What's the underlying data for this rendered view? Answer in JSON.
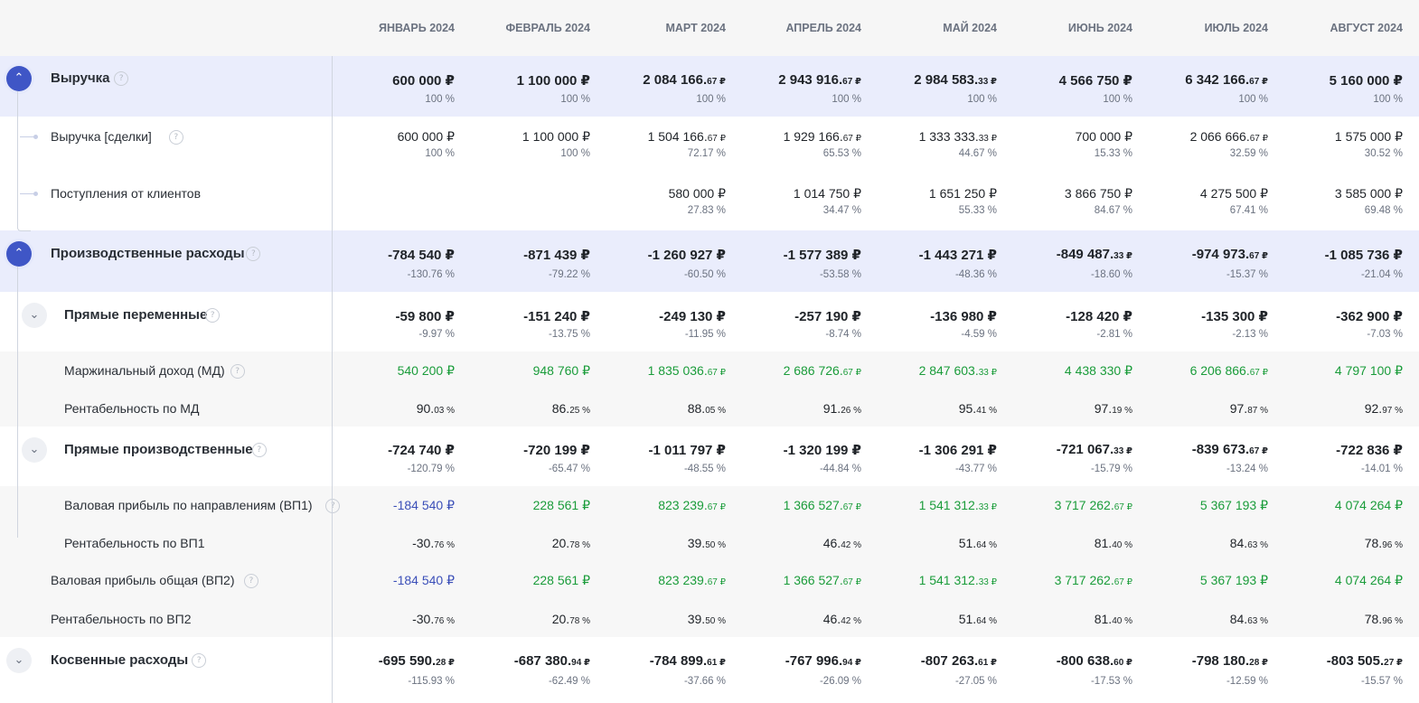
{
  "months": [
    "ЯНВАРЬ 2024",
    "ФЕВРАЛЬ 2024",
    "МАРТ 2024",
    "АПРЕЛЬ 2024",
    "МАЙ 2024",
    "ИЮНЬ 2024",
    "ИЮЛЬ 2024",
    "АВГУСТ 2024"
  ],
  "icons": {
    "help": "question-mark-icon",
    "collapse": "chevron-up-icon",
    "expand": "chevron-down-icon"
  },
  "colors": {
    "accent": "#3f56c6",
    "positive": "#1a9c3a",
    "negative_link": "#3b4fb8",
    "section_bg": "#eaedfc"
  },
  "rows": [
    {
      "id": "revenue",
      "label": "Выручка",
      "v1": [
        [
          "600 000 ₽",
          ""
        ],
        [
          "1 100 000 ₽",
          ""
        ],
        [
          "2 084 166.",
          "67 ₽"
        ],
        [
          "2 943 916.",
          "67 ₽"
        ],
        [
          "2 984 583.",
          "33 ₽"
        ],
        [
          "4 566 750 ₽",
          ""
        ],
        [
          "6 342 166.",
          "67 ₽"
        ],
        [
          "5 160 000 ₽",
          ""
        ]
      ],
      "v2": [
        "100 %",
        "100 %",
        "100 %",
        "100 %",
        "100 %",
        "100 %",
        "100 %",
        "100 %"
      ]
    },
    {
      "id": "revenue-deals",
      "label": "Выручка [сделки]",
      "v1": [
        [
          "600 000 ₽",
          ""
        ],
        [
          "1 100 000 ₽",
          ""
        ],
        [
          "1 504 166.",
          "67 ₽"
        ],
        [
          "1 929 166.",
          "67 ₽"
        ],
        [
          "1 333 333.",
          "33 ₽"
        ],
        [
          "700 000 ₽",
          ""
        ],
        [
          "2 066 666.",
          "67 ₽"
        ],
        [
          "1 575 000 ₽",
          ""
        ]
      ],
      "v2": [
        "100 %",
        "100 %",
        "72.17 %",
        "65.53 %",
        "44.67 %",
        "15.33 %",
        "32.59 %",
        "30.52 %"
      ]
    },
    {
      "id": "client-income",
      "label": "Поступления от клиентов",
      "v1": [
        [
          "",
          ""
        ],
        [
          "",
          ""
        ],
        [
          "580 000 ₽",
          ""
        ],
        [
          "1 014 750 ₽",
          ""
        ],
        [
          "1 651 250 ₽",
          ""
        ],
        [
          "3 866 750 ₽",
          ""
        ],
        [
          "4 275 500 ₽",
          ""
        ],
        [
          "3 585 000 ₽",
          ""
        ]
      ],
      "v2": [
        "",
        "",
        "27.83 %",
        "34.47 %",
        "55.33 %",
        "84.67 %",
        "67.41 %",
        "69.48 %"
      ]
    },
    {
      "id": "production-costs",
      "label": "Производственные расходы",
      "v1": [
        [
          "-784 540 ₽",
          ""
        ],
        [
          "-871 439 ₽",
          ""
        ],
        [
          "-1 260 927 ₽",
          ""
        ],
        [
          "-1 577 389 ₽",
          ""
        ],
        [
          "-1 443 271 ₽",
          ""
        ],
        [
          "-849 487.",
          "33 ₽"
        ],
        [
          "-974 973.",
          "67 ₽"
        ],
        [
          "-1 085 736 ₽",
          ""
        ]
      ],
      "v2": [
        "-130.76 %",
        "-79.22 %",
        "-60.50 %",
        "-53.58 %",
        "-48.36 %",
        "-18.60 %",
        "-15.37 %",
        "-21.04 %"
      ]
    },
    {
      "id": "direct-variable",
      "label": "Прямые переменные",
      "v1": [
        [
          "-59 800 ₽",
          ""
        ],
        [
          "-151 240 ₽",
          ""
        ],
        [
          "-249 130 ₽",
          ""
        ],
        [
          "-257 190 ₽",
          ""
        ],
        [
          "-136 980 ₽",
          ""
        ],
        [
          "-128 420 ₽",
          ""
        ],
        [
          "-135 300 ₽",
          ""
        ],
        [
          "-362 900 ₽",
          ""
        ]
      ],
      "v2": [
        "-9.97 %",
        "-13.75 %",
        "-11.95 %",
        "-8.74 %",
        "-4.59 %",
        "-2.81 %",
        "-2.13 %",
        "-7.03 %"
      ]
    },
    {
      "id": "marginal-income",
      "label": "Маржинальный доход (МД)",
      "v1": [
        [
          "540 200 ₽",
          ""
        ],
        [
          "948 760 ₽",
          ""
        ],
        [
          "1 835 036.",
          "67 ₽"
        ],
        [
          "2 686 726.",
          "67 ₽"
        ],
        [
          "2 847 603.",
          "33 ₽"
        ],
        [
          "4 438 330 ₽",
          ""
        ],
        [
          "6 206 866.",
          "67 ₽"
        ],
        [
          "4 797 100 ₽",
          ""
        ]
      ]
    },
    {
      "id": "md-profitability",
      "label": "Рентабельность по МД",
      "v1": [
        [
          "90.",
          "03 %"
        ],
        [
          "86.",
          "25 %"
        ],
        [
          "88.",
          "05 %"
        ],
        [
          "91.",
          "26 %"
        ],
        [
          "95.",
          "41 %"
        ],
        [
          "97.",
          "19 %"
        ],
        [
          "97.",
          "87 %"
        ],
        [
          "92.",
          "97 %"
        ]
      ]
    },
    {
      "id": "direct-production",
      "label": "Прямые производственные",
      "v1": [
        [
          "-724 740 ₽",
          ""
        ],
        [
          "-720 199 ₽",
          ""
        ],
        [
          "-1 011 797 ₽",
          ""
        ],
        [
          "-1 320 199 ₽",
          ""
        ],
        [
          "-1 306 291 ₽",
          ""
        ],
        [
          "-721 067.",
          "33 ₽"
        ],
        [
          "-839 673.",
          "67 ₽"
        ],
        [
          "-722 836 ₽",
          ""
        ]
      ],
      "v2": [
        "-120.79 %",
        "-65.47 %",
        "-48.55 %",
        "-44.84 %",
        "-43.77 %",
        "-15.79 %",
        "-13.24 %",
        "-14.01 %"
      ]
    },
    {
      "id": "gp1",
      "label": "Валовая прибыль по направлениям (ВП1)",
      "v1": [
        [
          "-184 540 ₽",
          ""
        ],
        [
          "228 561 ₽",
          ""
        ],
        [
          "823 239.",
          "67 ₽"
        ],
        [
          "1 366 527.",
          "67 ₽"
        ],
        [
          "1 541 312.",
          "33 ₽"
        ],
        [
          "3 717 262.",
          "67 ₽"
        ],
        [
          "5 367 193 ₽",
          ""
        ],
        [
          "4 074 264 ₽",
          ""
        ]
      ]
    },
    {
      "id": "gp1-profitability",
      "label": "Рентабельность по ВП1",
      "v1": [
        [
          "-30.",
          "76 %"
        ],
        [
          "20.",
          "78 %"
        ],
        [
          "39.",
          "50 %"
        ],
        [
          "46.",
          "42 %"
        ],
        [
          "51.",
          "64 %"
        ],
        [
          "81.",
          "40 %"
        ],
        [
          "84.",
          "63 %"
        ],
        [
          "78.",
          "96 %"
        ]
      ]
    },
    {
      "id": "gp2",
      "label": "Валовая прибыль общая (ВП2)",
      "v1": [
        [
          "-184 540 ₽",
          ""
        ],
        [
          "228 561 ₽",
          ""
        ],
        [
          "823 239.",
          "67 ₽"
        ],
        [
          "1 366 527.",
          "67 ₽"
        ],
        [
          "1 541 312.",
          "33 ₽"
        ],
        [
          "3 717 262.",
          "67 ₽"
        ],
        [
          "5 367 193 ₽",
          ""
        ],
        [
          "4 074 264 ₽",
          ""
        ]
      ]
    },
    {
      "id": "gp2-profitability",
      "label": "Рентабельность по ВП2",
      "v1": [
        [
          "-30.",
          "76 %"
        ],
        [
          "20.",
          "78 %"
        ],
        [
          "39.",
          "50 %"
        ],
        [
          "46.",
          "42 %"
        ],
        [
          "51.",
          "64 %"
        ],
        [
          "81.",
          "40 %"
        ],
        [
          "84.",
          "63 %"
        ],
        [
          "78.",
          "96 %"
        ]
      ]
    },
    {
      "id": "indirect-costs",
      "label": "Косвенные расходы",
      "v1": [
        [
          "-695 590.",
          "28 ₽"
        ],
        [
          "-687 380.",
          "94 ₽"
        ],
        [
          "-784 899.",
          "61 ₽"
        ],
        [
          "-767 996.",
          "94 ₽"
        ],
        [
          "-807 263.",
          "61 ₽"
        ],
        [
          "-800 638.",
          "60 ₽"
        ],
        [
          "-798 180.",
          "28 ₽"
        ],
        [
          "-803 505.",
          "27 ₽"
        ]
      ],
      "v2": [
        "-115.93 %",
        "-62.49 %",
        "-37.66 %",
        "-26.09 %",
        "-27.05 %",
        "-17.53 %",
        "-12.59 %",
        "-15.57 %"
      ]
    }
  ]
}
